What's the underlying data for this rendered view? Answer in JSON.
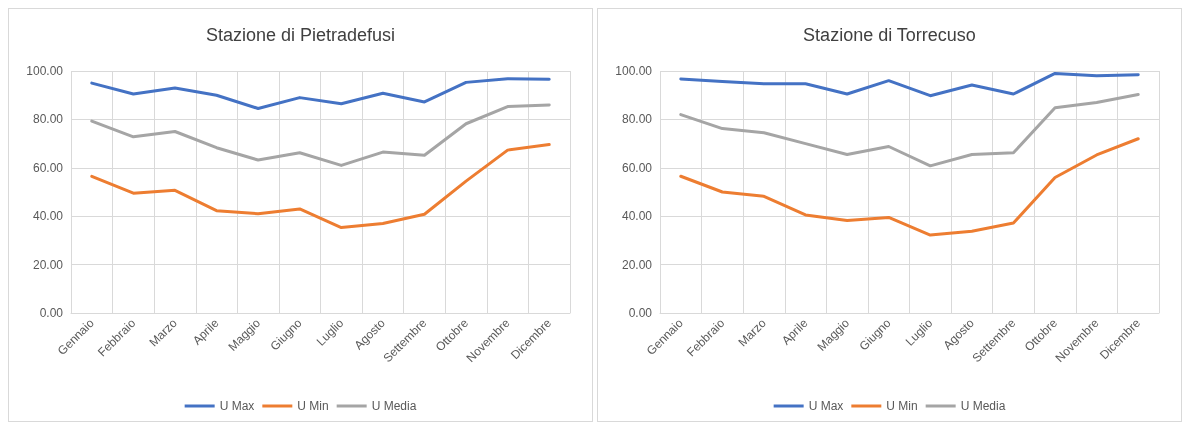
{
  "chart_data": [
    {
      "type": "line",
      "title": "Stazione di Pietradefusi",
      "categories": [
        "Gennaio",
        "Febbraio",
        "Marzo",
        "Aprile",
        "Maggio",
        "Giugno",
        "Luglio",
        "Agosto",
        "Settembre",
        "Ottobre",
        "Novembre",
        "Dicembre"
      ],
      "series": [
        {
          "name": "U Max",
          "color": "#4472c4",
          "values": [
            95,
            90.5,
            93,
            90,
            84.5,
            89,
            86.5,
            90.8,
            87.2,
            95.3,
            96.8,
            96.6
          ]
        },
        {
          "name": "U Min",
          "color": "#ed7d31",
          "values": [
            56.5,
            49.5,
            50.7,
            42.3,
            41,
            43,
            35.3,
            37,
            40.8,
            54.5,
            67.3,
            69.6
          ]
        },
        {
          "name": "U Media",
          "color": "#a5a5a5",
          "values": [
            79.3,
            72.8,
            75,
            68.3,
            63.2,
            66.2,
            61,
            66.5,
            65.2,
            78.2,
            85.3,
            86
          ]
        }
      ],
      "ylim": [
        0,
        100
      ],
      "yticks": [
        {
          "value": 0,
          "label": "0.00"
        },
        {
          "value": 20,
          "label": "20.00"
        },
        {
          "value": 40,
          "label": "40.00"
        },
        {
          "value": 60,
          "label": "60.00"
        },
        {
          "value": 80,
          "label": "80.00"
        },
        {
          "value": 100,
          "label": "100.00"
        }
      ],
      "grid": true,
      "legend": "bottom",
      "marker": "none",
      "line_style": "solid"
    },
    {
      "type": "line",
      "title": "Stazione di Torrecuso",
      "categories": [
        "Gennaio",
        "Febbraio",
        "Marzo",
        "Aprile",
        "Maggio",
        "Giugno",
        "Luglio",
        "Agosto",
        "Settembre",
        "Ottobre",
        "Novembre",
        "Dicembre"
      ],
      "series": [
        {
          "name": "U Max",
          "color": "#4472c4",
          "values": [
            96.7,
            95.7,
            94.7,
            94.7,
            90.5,
            96,
            89.8,
            94.2,
            90.5,
            99,
            98,
            98.5
          ]
        },
        {
          "name": "U Min",
          "color": "#ed7d31",
          "values": [
            56.5,
            50,
            48.2,
            40.5,
            38.2,
            39.5,
            32.2,
            33.8,
            37.2,
            56,
            65.3,
            72
          ]
        },
        {
          "name": "U Media",
          "color": "#a5a5a5",
          "values": [
            82,
            76.2,
            74.5,
            70,
            65.5,
            68.8,
            60.8,
            65.5,
            66.2,
            84.8,
            87,
            90.3
          ]
        }
      ],
      "ylim": [
        0,
        100
      ],
      "yticks": [
        {
          "value": 0,
          "label": "0.00"
        },
        {
          "value": 20,
          "label": "20.00"
        },
        {
          "value": 40,
          "label": "40.00"
        },
        {
          "value": 60,
          "label": "60.00"
        },
        {
          "value": 80,
          "label": "80.00"
        },
        {
          "value": 100,
          "label": "100.00"
        }
      ],
      "grid": true,
      "legend": "bottom",
      "marker": "none",
      "line_style": "solid"
    }
  ]
}
